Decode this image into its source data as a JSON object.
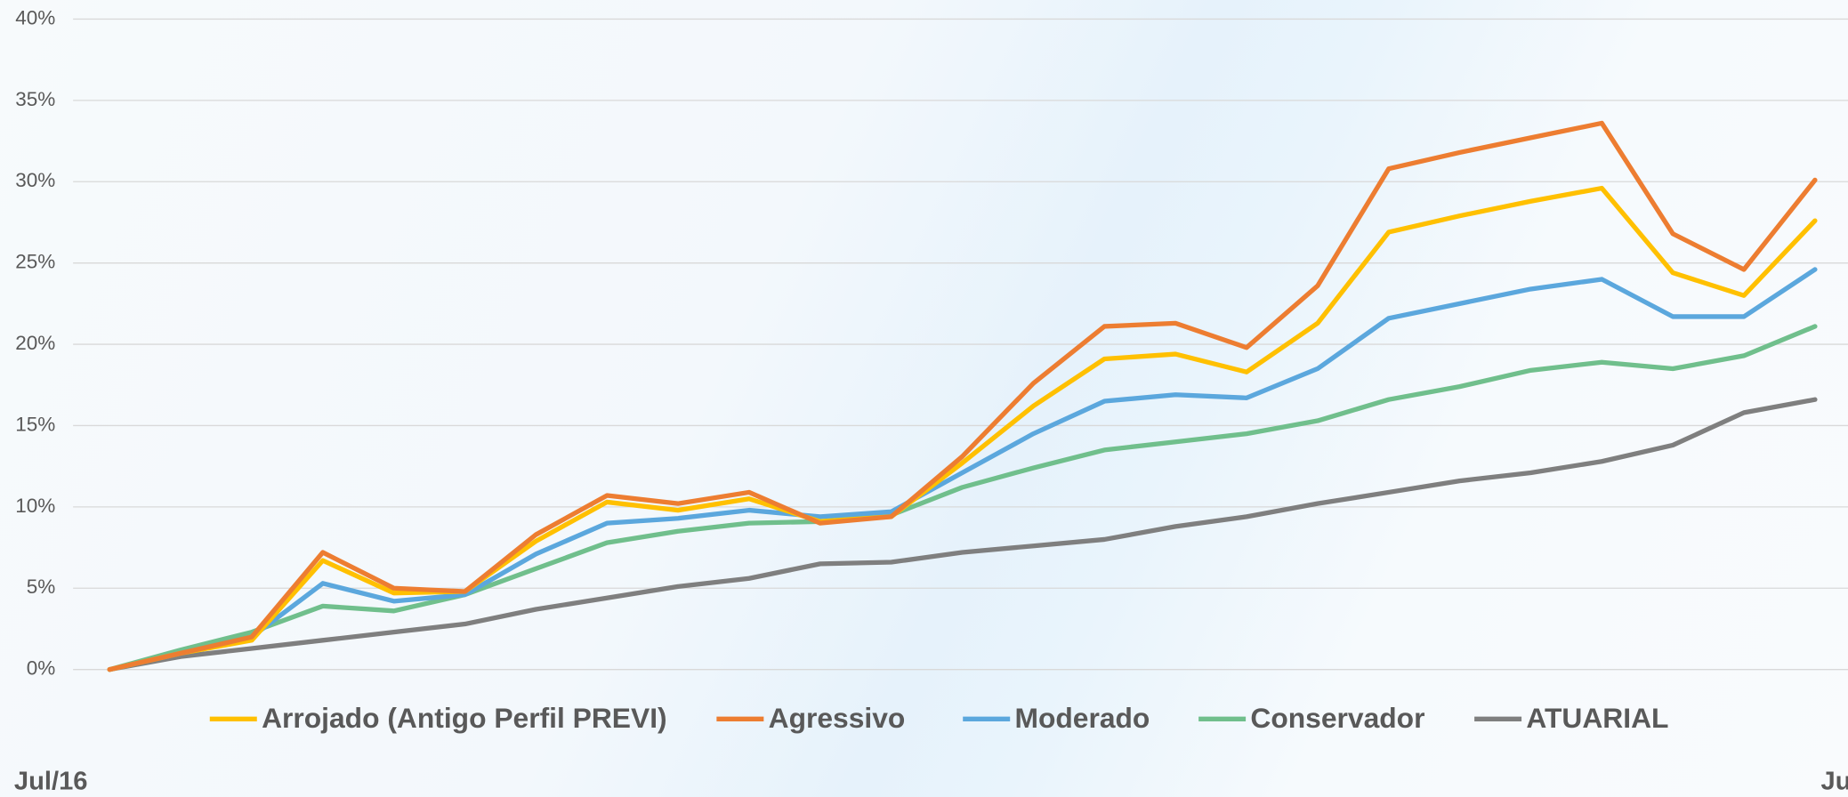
{
  "chart_data": {
    "type": "line",
    "categories": [
      "Jul/16",
      null,
      null,
      null,
      null,
      null,
      null,
      null,
      null,
      null,
      null,
      null,
      null,
      null,
      null,
      null,
      null,
      null,
      null,
      null,
      null,
      null,
      null,
      null,
      "Ju"
    ],
    "ylim": [
      0,
      40
    ],
    "yticks": [
      {
        "value": 0,
        "label": "0%"
      },
      {
        "value": 5,
        "label": "5%"
      },
      {
        "value": 10,
        "label": "10%"
      },
      {
        "value": 15,
        "label": "15%"
      },
      {
        "value": 20,
        "label": "20%"
      },
      {
        "value": 25,
        "label": "25%"
      },
      {
        "value": 30,
        "label": "30%"
      },
      {
        "value": 35,
        "label": "35%"
      },
      {
        "value": 40,
        "label": "40%"
      }
    ],
    "grid": true,
    "legend": "bottom",
    "series": [
      {
        "name": "Arrojado (Antigo Perfil PREVI)",
        "color": "#ffc000",
        "values": [
          0,
          1.0,
          1.8,
          6.7,
          4.7,
          4.8,
          7.9,
          10.3,
          9.8,
          10.5,
          9.1,
          9.4,
          12.7,
          16.2,
          19.1,
          19.4,
          18.3,
          21.3,
          26.9,
          27.9,
          28.8,
          29.6,
          24.4,
          23.0,
          27.6
        ]
      },
      {
        "name": "Agressivo",
        "color": "#ed7d31",
        "values": [
          0,
          1.0,
          2.0,
          7.2,
          5.0,
          4.8,
          8.3,
          10.7,
          10.2,
          10.9,
          9.0,
          9.4,
          13.1,
          17.6,
          21.1,
          21.3,
          19.8,
          23.6,
          30.8,
          31.8,
          32.7,
          33.6,
          26.8,
          24.6,
          30.1
        ]
      },
      {
        "name": "Moderado",
        "color": "#5ba7dd",
        "values": [
          0,
          1.0,
          2.0,
          5.3,
          4.2,
          4.6,
          7.1,
          9.0,
          9.3,
          9.8,
          9.4,
          9.7,
          12.1,
          14.5,
          16.5,
          16.9,
          16.7,
          18.5,
          21.6,
          22.5,
          23.4,
          24.0,
          21.7,
          21.7,
          24.6
        ]
      },
      {
        "name": "Conservador",
        "color": "#70bf8c",
        "values": [
          0,
          1.2,
          2.3,
          3.9,
          3.6,
          4.6,
          6.2,
          7.8,
          8.5,
          9.0,
          9.1,
          9.5,
          11.2,
          12.4,
          13.5,
          14.0,
          14.5,
          15.3,
          16.6,
          17.4,
          18.4,
          18.9,
          18.5,
          19.3,
          21.1
        ]
      },
      {
        "name": "ATUARIAL",
        "color": "#7f7f7f",
        "values": [
          0,
          0.8,
          1.3,
          1.8,
          2.3,
          2.8,
          3.7,
          4.4,
          5.1,
          5.6,
          6.5,
          6.6,
          7.2,
          7.6,
          8.0,
          8.8,
          9.4,
          10.2,
          10.9,
          11.6,
          12.1,
          12.8,
          13.8,
          15.8,
          16.6
        ]
      }
    ]
  }
}
